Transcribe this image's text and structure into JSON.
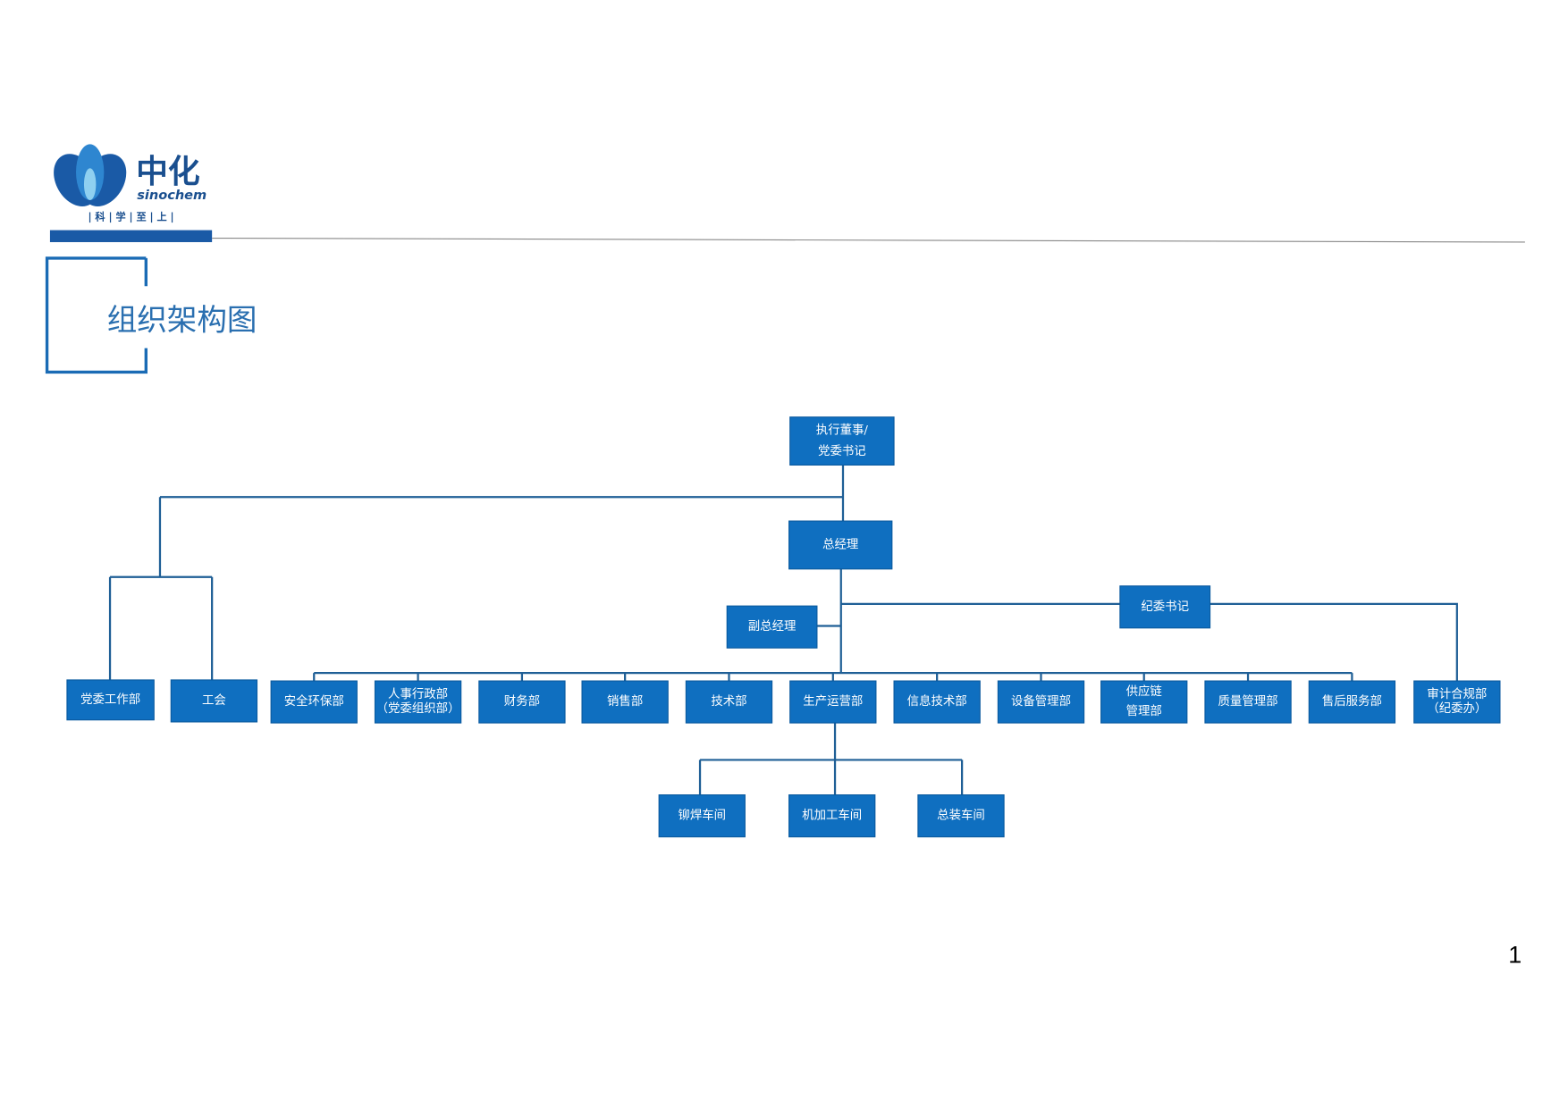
{
  "header": {
    "logo_cn": "中化",
    "logo_en": "sinochem",
    "slogan": "| 科 | 学 | 至 | 上 |"
  },
  "title": "组织架构图",
  "nodes": [
    {
      "id": "ceo",
      "lines": [
        "执行董事/",
        "党委书记"
      ]
    },
    {
      "id": "gm",
      "lines": [
        "总经理"
      ]
    },
    {
      "id": "dgm",
      "lines": [
        "副总经理"
      ]
    },
    {
      "id": "disc",
      "lines": [
        "纪委书记"
      ]
    },
    {
      "id": "party",
      "lines": [
        "党委工作部"
      ]
    },
    {
      "id": "union",
      "lines": [
        "工会"
      ]
    },
    {
      "id": "d1",
      "lines": [
        "安全环保部"
      ]
    },
    {
      "id": "d2",
      "lines": [
        "人事行政部",
        "（党委组织部）"
      ]
    },
    {
      "id": "d3",
      "lines": [
        "财务部"
      ]
    },
    {
      "id": "d4",
      "lines": [
        "销售部"
      ]
    },
    {
      "id": "d5",
      "lines": [
        "技术部"
      ]
    },
    {
      "id": "d6",
      "lines": [
        "生产运营部"
      ]
    },
    {
      "id": "d7",
      "lines": [
        "信息技术部"
      ]
    },
    {
      "id": "d8",
      "lines": [
        "设备管理部"
      ]
    },
    {
      "id": "d9",
      "lines": [
        "供应链",
        "管理部"
      ]
    },
    {
      "id": "d10",
      "lines": [
        "质量管理部"
      ]
    },
    {
      "id": "d11",
      "lines": [
        "售后服务部"
      ]
    },
    {
      "id": "d12",
      "lines": [
        "审计合规部",
        "（纪委办）"
      ]
    },
    {
      "id": "w1",
      "lines": [
        "铆焊车间"
      ]
    },
    {
      "id": "w2",
      "lines": [
        "机加工车间"
      ]
    },
    {
      "id": "w3",
      "lines": [
        "总装车间"
      ]
    }
  ],
  "page_number": "1"
}
